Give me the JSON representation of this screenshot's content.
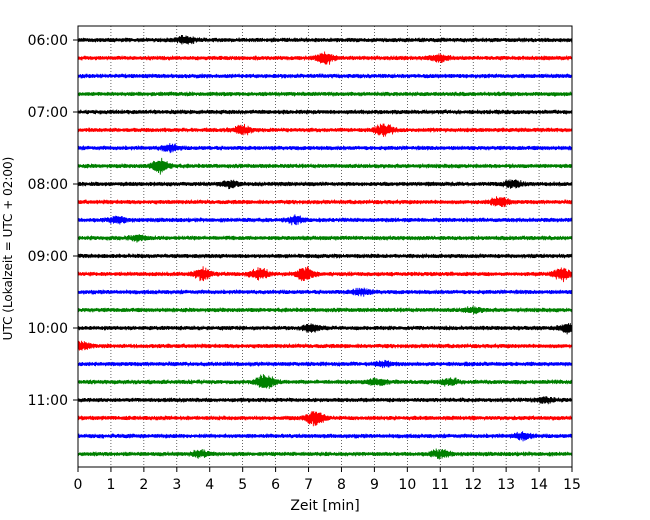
{
  "chart_data": {
    "type": "line",
    "xlabel": "Zeit  [min]",
    "ylabel": "UTC (Lokalzeit = UTC + 02:00)",
    "xlim": [
      0,
      15
    ],
    "x_ticks": [
      "0",
      "1",
      "2",
      "3",
      "4",
      "5",
      "6",
      "7",
      "8",
      "9",
      "10",
      "11",
      "12",
      "13",
      "14",
      "15"
    ],
    "y_tick_labels": [
      "06:00",
      "07:00",
      "08:00",
      "09:00",
      "10:00",
      "11:00"
    ],
    "trace_interval_min": 15,
    "start_time": "06:00",
    "grid": "vertical-dotted",
    "trace_colors": [
      "#000000",
      "#ff0000",
      "#0000ff",
      "#008000"
    ],
    "traces": [
      {
        "time": "06:00",
        "bursts": [
          {
            "t": 3.3,
            "amp": 0.5
          }
        ]
      },
      {
        "time": "06:15",
        "bursts": [
          {
            "t": 7.5,
            "amp": 0.7
          },
          {
            "t": 11.0,
            "amp": 0.5
          }
        ]
      },
      {
        "time": "06:30",
        "bursts": []
      },
      {
        "time": "06:45",
        "bursts": []
      },
      {
        "time": "07:00",
        "bursts": []
      },
      {
        "time": "07:15",
        "bursts": [
          {
            "t": 5.0,
            "amp": 0.6
          },
          {
            "t": 9.3,
            "amp": 0.8
          }
        ]
      },
      {
        "time": "07:30",
        "bursts": [
          {
            "t": 2.8,
            "amp": 0.4
          }
        ]
      },
      {
        "time": "07:45",
        "bursts": [
          {
            "t": 2.5,
            "amp": 0.8
          }
        ]
      },
      {
        "time": "08:00",
        "bursts": [
          {
            "t": 4.6,
            "amp": 0.4
          },
          {
            "t": 13.2,
            "amp": 0.4
          }
        ]
      },
      {
        "time": "08:15",
        "bursts": [
          {
            "t": 12.8,
            "amp": 0.6
          }
        ]
      },
      {
        "time": "08:30",
        "bursts": [
          {
            "t": 1.2,
            "amp": 0.4
          },
          {
            "t": 6.6,
            "amp": 0.4
          }
        ]
      },
      {
        "time": "08:45",
        "bursts": [
          {
            "t": 1.8,
            "amp": 0.3
          }
        ]
      },
      {
        "time": "09:00",
        "bursts": []
      },
      {
        "time": "09:15",
        "bursts": [
          {
            "t": 3.8,
            "amp": 0.7
          },
          {
            "t": 5.5,
            "amp": 0.7
          },
          {
            "t": 6.9,
            "amp": 0.8
          },
          {
            "t": 14.7,
            "amp": 0.7
          }
        ]
      },
      {
        "time": "09:30",
        "bursts": [
          {
            "t": 8.6,
            "amp": 0.4
          }
        ]
      },
      {
        "time": "09:45",
        "bursts": [
          {
            "t": 12.0,
            "amp": 0.3
          }
        ]
      },
      {
        "time": "10:00",
        "bursts": [
          {
            "t": 7.1,
            "amp": 0.5
          },
          {
            "t": 14.9,
            "amp": 0.5
          }
        ]
      },
      {
        "time": "10:15",
        "bursts": [
          {
            "t": 0.1,
            "amp": 0.5
          }
        ]
      },
      {
        "time": "10:30",
        "bursts": [
          {
            "t": 9.3,
            "amp": 0.3
          }
        ]
      },
      {
        "time": "10:45",
        "bursts": [
          {
            "t": 5.7,
            "amp": 1.0
          },
          {
            "t": 9.1,
            "amp": 0.4
          },
          {
            "t": 11.3,
            "amp": 0.4
          }
        ]
      },
      {
        "time": "11:00",
        "bursts": [
          {
            "t": 14.2,
            "amp": 0.3
          }
        ]
      },
      {
        "time": "11:15",
        "bursts": [
          {
            "t": 7.2,
            "amp": 1.0
          }
        ]
      },
      {
        "time": "11:30",
        "bursts": [
          {
            "t": 13.5,
            "amp": 0.4
          }
        ]
      },
      {
        "time": "11:45",
        "bursts": [
          {
            "t": 3.7,
            "amp": 0.4
          },
          {
            "t": 11.0,
            "amp": 0.5
          }
        ]
      }
    ]
  }
}
